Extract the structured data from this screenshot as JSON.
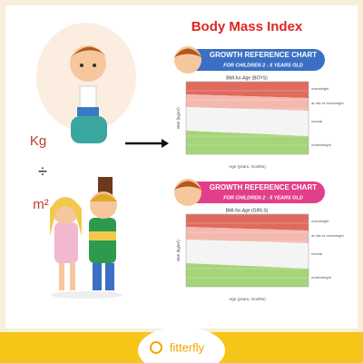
{
  "title": "Body Mass Index",
  "formula": {
    "numerator": "Kg",
    "operator": "÷",
    "denominator": "m²"
  },
  "charts": [
    {
      "banner": "GROWTH REFERENCE CHART",
      "subtitle": "FOR CHILDREN 2 - 5 YEARS OLD",
      "chart_title": "BMI-for-Age (BOYS)",
      "y_label": "BMI (kg/m²)",
      "x_label": "Age (years, months)",
      "zones": [
        "overweight",
        "at risk of overweight",
        "normal",
        "underweight"
      ]
    },
    {
      "banner": "GROWTH REFERENCE CHART",
      "subtitle": "FOR CHILDREN 2 - 5 YEARS OLD",
      "chart_title": "BMI-for-Age (GIRLS)",
      "y_label": "BMI (kg/m²)",
      "x_label": "Age (years, months)",
      "zones": [
        "overweight",
        "at risk of overweight",
        "normal",
        "underweight"
      ]
    }
  ],
  "brand": "fitterfly"
}
